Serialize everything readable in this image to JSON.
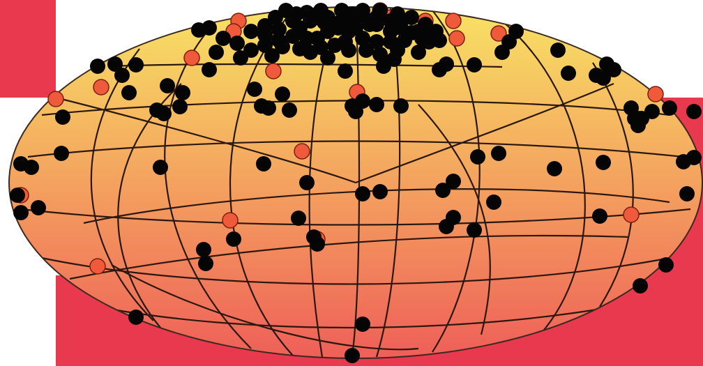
{
  "background": {
    "block_color": "#e8394f",
    "page_color": "#ffffff"
  },
  "sphere": {
    "gradient_top": "#f8e264",
    "gradient_mid": "#f4a25f",
    "gradient_bottom": "#ee5f58",
    "grid_line_color": "#2a1810",
    "outline_color": "#3a2a20"
  },
  "markers": {
    "dark_color": "#050505",
    "red_color": "#ef5a3a",
    "red_stroke": "#7a1e10",
    "dark_count_approx": 170,
    "red_count_approx": 18
  }
}
